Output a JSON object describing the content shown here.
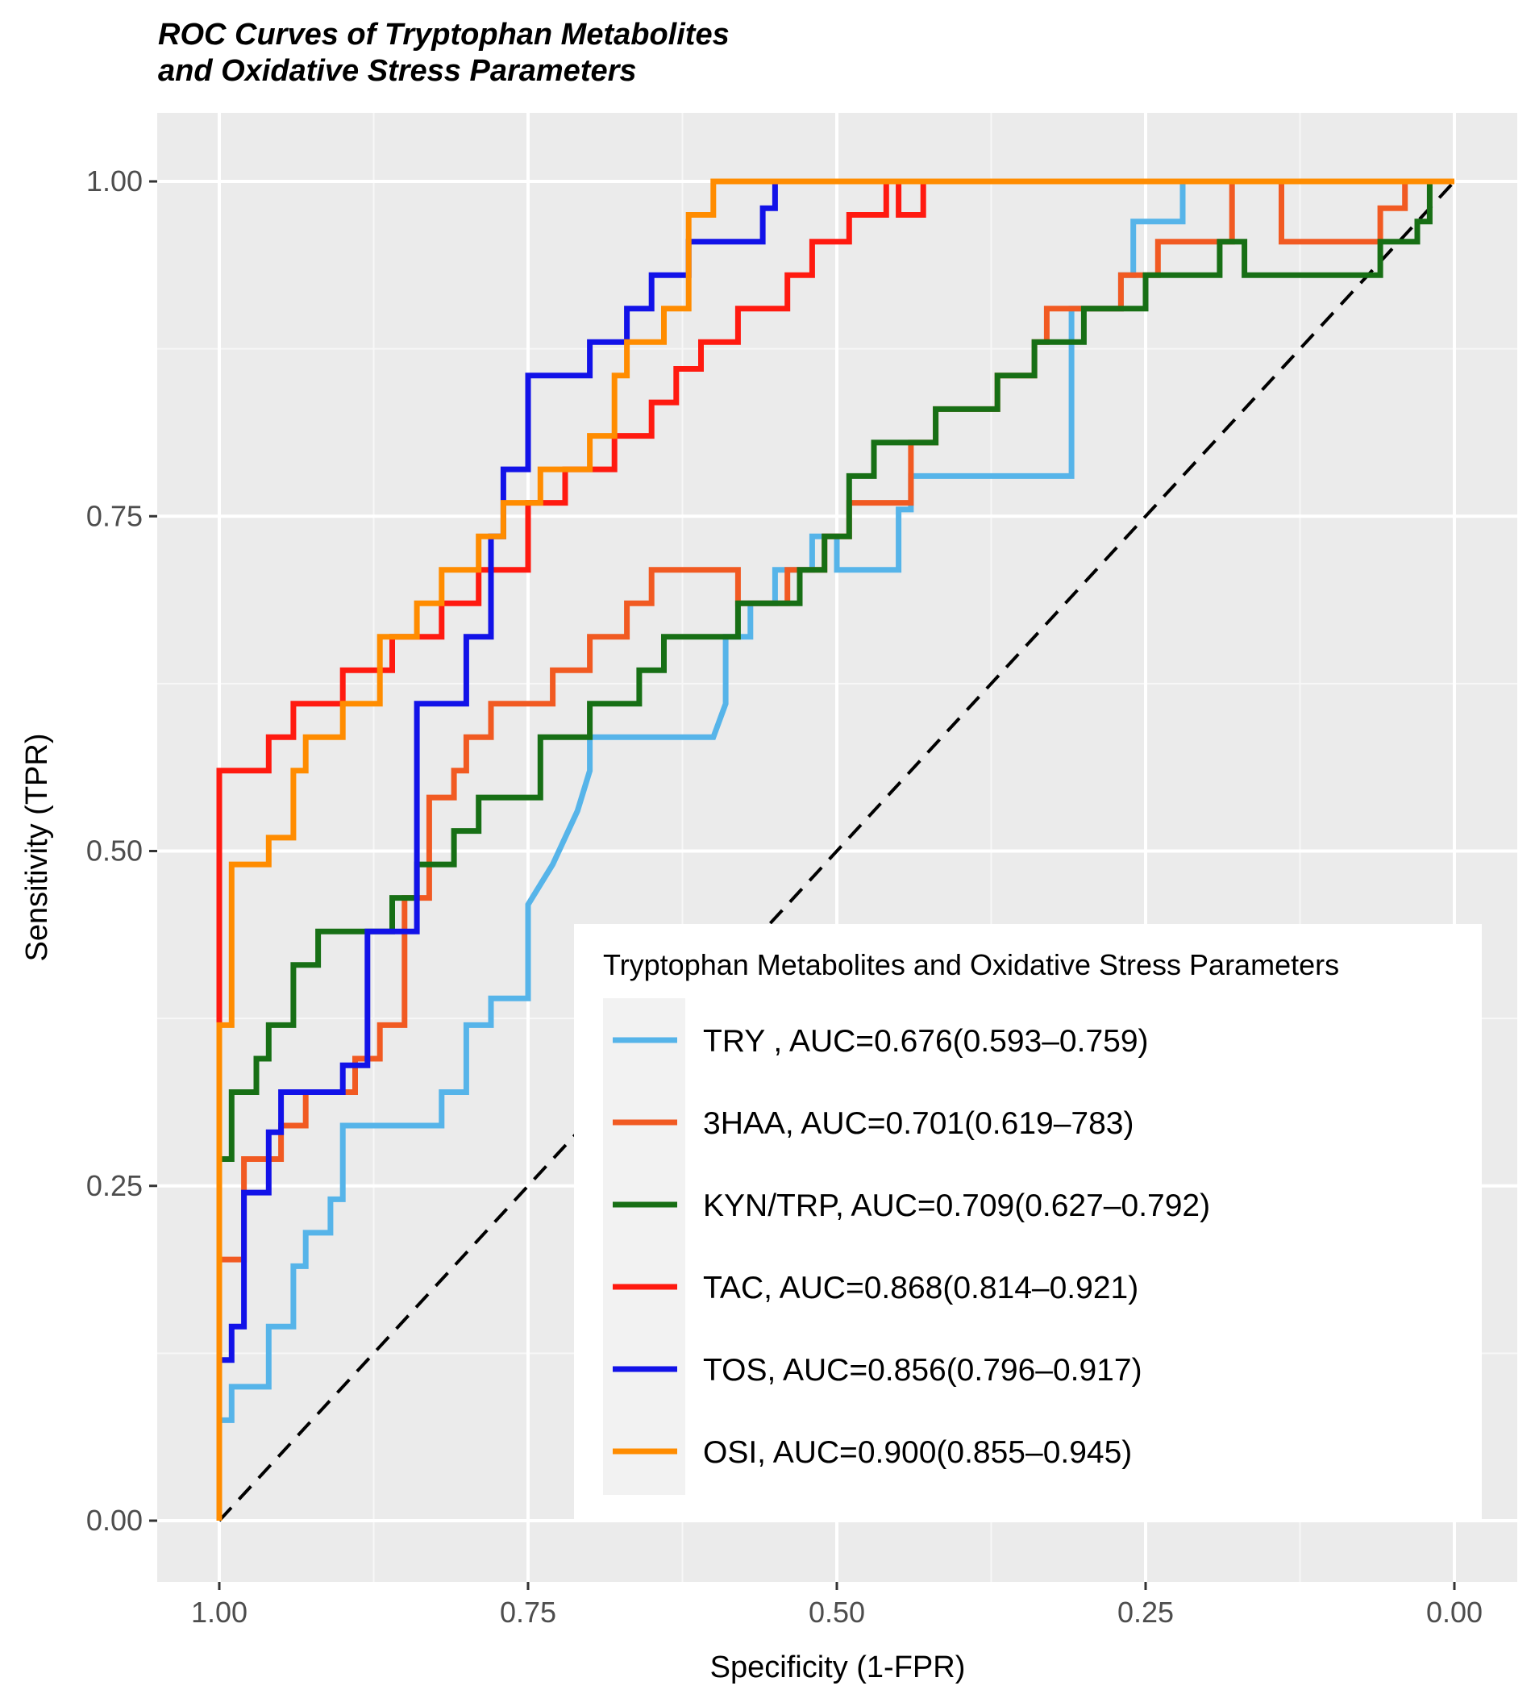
{
  "chart_data": {
    "type": "line",
    "title": [
      "ROC Curves of Tryptophan Metabolites",
      "and Oxidative Stress Parameters"
    ],
    "xlabel": "Specificity (1-FPR)",
    "ylabel": "Sensitivity (TPR)",
    "x_reversed": true,
    "xlim": [
      1.0,
      0.0
    ],
    "ylim": [
      0.0,
      1.0
    ],
    "xticks": [
      "1.00",
      "0.75",
      "0.50",
      "0.25",
      "0.00"
    ],
    "yticks": [
      "0.00",
      "0.25",
      "0.50",
      "0.75",
      "1.00"
    ],
    "grid": true,
    "legend": {
      "title": "Tryptophan Metabolites and Oxidative Stress Parameters",
      "position": "bottom-right"
    },
    "reference_line": {
      "style": "dashed",
      "color": "#000000",
      "x": [
        1.0,
        0.0
      ],
      "y": [
        0.0,
        1.0
      ]
    },
    "series": [
      {
        "name": "TRY , AUC=0.676(0.593–0.759)",
        "color": "#56B4E9",
        "x": [
          1.0,
          1.0,
          0.99,
          0.99,
          0.96,
          0.96,
          0.94,
          0.94,
          0.93,
          0.93,
          0.91,
          0.91,
          0.9,
          0.9,
          0.82,
          0.82,
          0.8,
          0.8,
          0.78,
          0.78,
          0.75,
          0.75,
          0.73,
          0.71,
          0.7,
          0.7,
          0.6,
          0.59,
          0.59,
          0.57,
          0.57,
          0.55,
          0.55,
          0.52,
          0.52,
          0.5,
          0.5,
          0.45,
          0.45,
          0.44,
          0.44,
          0.31,
          0.31,
          0.27,
          0.27,
          0.26,
          0.26,
          0.22,
          0.22,
          0.0
        ],
        "y": [
          0.0,
          0.075,
          0.075,
          0.1,
          0.1,
          0.145,
          0.145,
          0.19,
          0.19,
          0.215,
          0.215,
          0.24,
          0.24,
          0.295,
          0.295,
          0.32,
          0.32,
          0.37,
          0.37,
          0.39,
          0.39,
          0.46,
          0.49,
          0.53,
          0.56,
          0.585,
          0.585,
          0.61,
          0.66,
          0.66,
          0.685,
          0.685,
          0.71,
          0.71,
          0.735,
          0.735,
          0.71,
          0.71,
          0.755,
          0.755,
          0.78,
          0.78,
          0.905,
          0.905,
          0.93,
          0.93,
          0.97,
          0.97,
          1.0,
          1.0
        ]
      },
      {
        "name": "3HAA, AUC=0.701(0.619–783)",
        "color": "#F15A22",
        "x": [
          1.0,
          1.0,
          0.98,
          0.98,
          0.95,
          0.95,
          0.93,
          0.93,
          0.89,
          0.89,
          0.87,
          0.87,
          0.85,
          0.85,
          0.83,
          0.83,
          0.81,
          0.81,
          0.8,
          0.8,
          0.78,
          0.78,
          0.73,
          0.73,
          0.7,
          0.7,
          0.67,
          0.67,
          0.65,
          0.65,
          0.58,
          0.58,
          0.54,
          0.54,
          0.51,
          0.51,
          0.49,
          0.49,
          0.44,
          0.44,
          0.42,
          0.42,
          0.37,
          0.37,
          0.34,
          0.34,
          0.33,
          0.33,
          0.27,
          0.27,
          0.24,
          0.24,
          0.18,
          0.18,
          0.16,
          0.16,
          0.14,
          0.14,
          0.06,
          0.06,
          0.04,
          0.04,
          0.03,
          0.03,
          0.0
        ],
        "y": [
          0.0,
          0.195,
          0.195,
          0.27,
          0.27,
          0.295,
          0.295,
          0.32,
          0.32,
          0.345,
          0.345,
          0.37,
          0.37,
          0.465,
          0.465,
          0.54,
          0.54,
          0.56,
          0.56,
          0.585,
          0.585,
          0.61,
          0.61,
          0.635,
          0.635,
          0.66,
          0.66,
          0.685,
          0.685,
          0.71,
          0.71,
          0.685,
          0.685,
          0.71,
          0.71,
          0.735,
          0.735,
          0.76,
          0.76,
          0.805,
          0.805,
          0.83,
          0.83,
          0.855,
          0.855,
          0.88,
          0.88,
          0.905,
          0.905,
          0.93,
          0.93,
          0.955,
          0.955,
          1.0,
          1.0,
          1.0,
          1.0,
          0.955,
          0.955,
          0.98,
          0.98,
          1.0,
          1.0,
          1.0,
          1.0
        ]
      },
      {
        "name": "KYN/TRP, AUC=0.709(0.627–0.792)",
        "color": "#176F15",
        "x": [
          1.0,
          1.0,
          0.99,
          0.99,
          0.97,
          0.97,
          0.96,
          0.96,
          0.94,
          0.94,
          0.92,
          0.92,
          0.86,
          0.86,
          0.84,
          0.84,
          0.81,
          0.81,
          0.79,
          0.79,
          0.74,
          0.74,
          0.7,
          0.7,
          0.66,
          0.66,
          0.64,
          0.64,
          0.58,
          0.58,
          0.53,
          0.53,
          0.51,
          0.51,
          0.49,
          0.49,
          0.47,
          0.47,
          0.42,
          0.42,
          0.37,
          0.37,
          0.34,
          0.34,
          0.3,
          0.3,
          0.25,
          0.25,
          0.19,
          0.19,
          0.17,
          0.17,
          0.06,
          0.06,
          0.03,
          0.03,
          0.02,
          0.02,
          0.0
        ],
        "y": [
          0.0,
          0.27,
          0.27,
          0.32,
          0.32,
          0.345,
          0.345,
          0.37,
          0.37,
          0.415,
          0.415,
          0.44,
          0.44,
          0.465,
          0.465,
          0.49,
          0.49,
          0.515,
          0.515,
          0.54,
          0.54,
          0.585,
          0.585,
          0.61,
          0.61,
          0.635,
          0.635,
          0.66,
          0.66,
          0.685,
          0.685,
          0.71,
          0.71,
          0.735,
          0.735,
          0.78,
          0.78,
          0.805,
          0.805,
          0.83,
          0.83,
          0.855,
          0.855,
          0.88,
          0.88,
          0.905,
          0.905,
          0.93,
          0.93,
          0.955,
          0.955,
          0.93,
          0.93,
          0.955,
          0.955,
          0.97,
          0.97,
          1.0,
          1.0
        ]
      },
      {
        "name": "TAC, AUC=0.868(0.814–0.921)",
        "color": "#FF1A10",
        "x": [
          1.0,
          1.0,
          0.96,
          0.96,
          0.94,
          0.94,
          0.92,
          0.92,
          0.9,
          0.9,
          0.86,
          0.86,
          0.82,
          0.82,
          0.79,
          0.79,
          0.75,
          0.75,
          0.72,
          0.72,
          0.68,
          0.68,
          0.65,
          0.65,
          0.63,
          0.63,
          0.61,
          0.61,
          0.58,
          0.58,
          0.54,
          0.54,
          0.52,
          0.52,
          0.49,
          0.49,
          0.46,
          0.46,
          0.45,
          0.45,
          0.43,
          0.43,
          0.23,
          0.23,
          0.0
        ],
        "y": [
          0.37,
          0.56,
          0.56,
          0.585,
          0.585,
          0.61,
          0.61,
          0.61,
          0.61,
          0.635,
          0.635,
          0.66,
          0.66,
          0.685,
          0.685,
          0.71,
          0.71,
          0.76,
          0.76,
          0.785,
          0.785,
          0.81,
          0.81,
          0.835,
          0.835,
          0.86,
          0.86,
          0.88,
          0.88,
          0.905,
          0.905,
          0.93,
          0.93,
          0.955,
          0.955,
          0.975,
          0.975,
          1.0,
          1.0,
          0.975,
          0.975,
          1.0,
          1.0,
          1.0,
          1.0
        ]
      },
      {
        "name": "TOS, AUC=0.856(0.796–0.917)",
        "color": "#1212E8",
        "x": [
          1.0,
          0.99,
          0.99,
          0.98,
          0.98,
          0.96,
          0.96,
          0.95,
          0.95,
          0.9,
          0.9,
          0.88,
          0.88,
          0.84,
          0.84,
          0.8,
          0.8,
          0.78,
          0.78,
          0.77,
          0.77,
          0.75,
          0.75,
          0.7,
          0.7,
          0.67,
          0.67,
          0.65,
          0.65,
          0.62,
          0.62,
          0.56,
          0.56,
          0.55,
          0.55
        ],
        "y": [
          0.12,
          0.12,
          0.145,
          0.145,
          0.245,
          0.245,
          0.29,
          0.29,
          0.32,
          0.32,
          0.34,
          0.34,
          0.44,
          0.44,
          0.61,
          0.61,
          0.66,
          0.66,
          0.735,
          0.735,
          0.785,
          0.785,
          0.855,
          0.855,
          0.88,
          0.88,
          0.905,
          0.905,
          0.93,
          0.93,
          0.955,
          0.955,
          0.98,
          0.98,
          1.0
        ]
      },
      {
        "name": "OSI, AUC=0.900(0.855–0.945)",
        "color": "#FF8C00",
        "x": [
          1.0,
          1.0,
          0.99,
          0.99,
          0.96,
          0.96,
          0.94,
          0.94,
          0.93,
          0.93,
          0.9,
          0.9,
          0.87,
          0.87,
          0.84,
          0.84,
          0.82,
          0.82,
          0.79,
          0.79,
          0.77,
          0.77,
          0.74,
          0.74,
          0.7,
          0.7,
          0.68,
          0.68,
          0.67,
          0.67,
          0.64,
          0.64,
          0.62,
          0.62,
          0.6,
          0.6,
          0.0
        ],
        "y": [
          0.0,
          0.37,
          0.37,
          0.49,
          0.49,
          0.51,
          0.51,
          0.56,
          0.56,
          0.585,
          0.585,
          0.61,
          0.61,
          0.66,
          0.66,
          0.685,
          0.685,
          0.71,
          0.71,
          0.735,
          0.735,
          0.76,
          0.76,
          0.785,
          0.785,
          0.81,
          0.81,
          0.855,
          0.855,
          0.88,
          0.88,
          0.905,
          0.905,
          0.975,
          0.975,
          1.0,
          1.0
        ]
      }
    ]
  }
}
